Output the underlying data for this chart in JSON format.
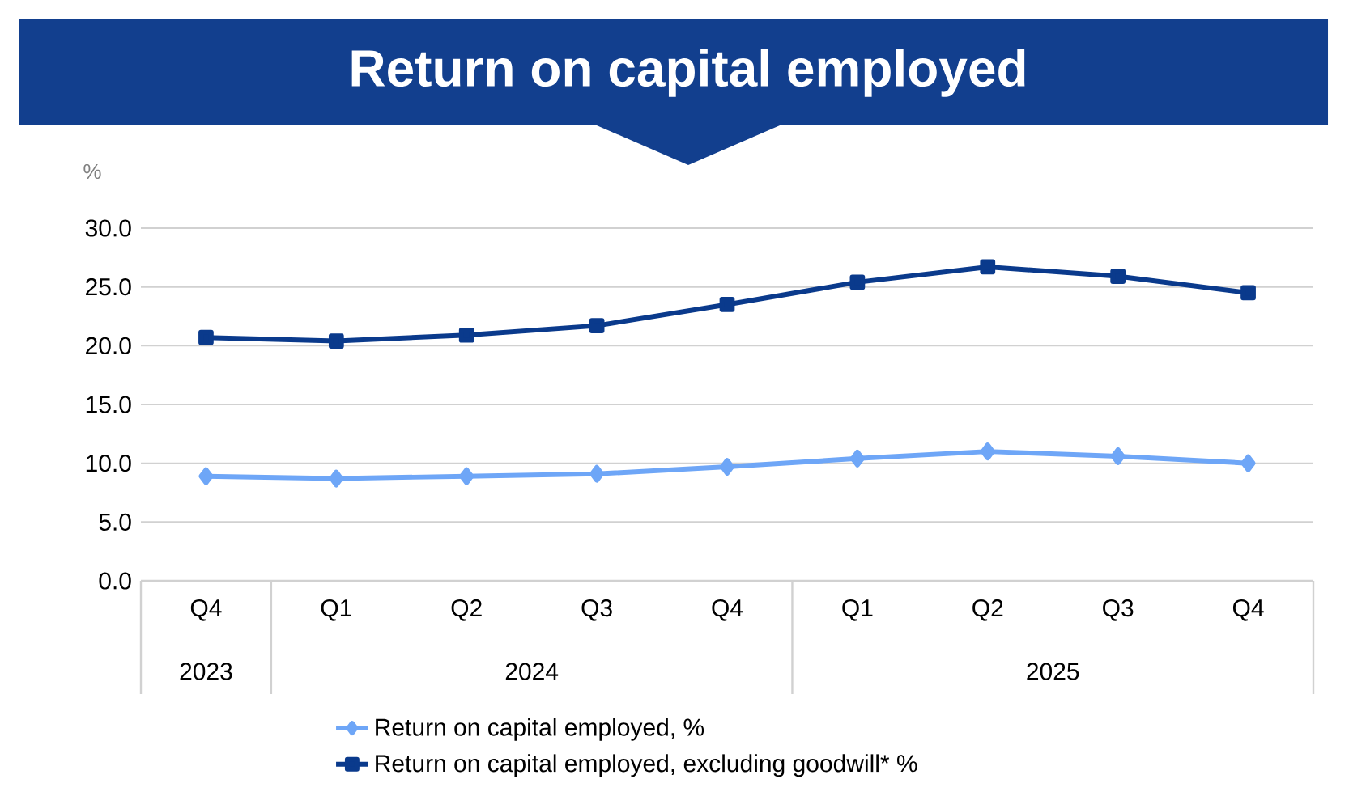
{
  "chart_data": {
    "type": "line",
    "title": "Return on capital employed",
    "ylabel": "%",
    "categories": [
      "Q4",
      "Q1",
      "Q2",
      "Q3",
      "Q4",
      "Q1",
      "Q2",
      "Q3",
      "Q4"
    ],
    "annotations": [
      "2023",
      "2024",
      "2025"
    ],
    "series": [
      {
        "name": "Return on capital employed, %",
        "color": "#6ea6f7",
        "marker": "diamond",
        "values": [
          8.9,
          8.7,
          8.9,
          9.1,
          9.7,
          10.4,
          11.0,
          10.6,
          10.0
        ]
      },
      {
        "name": "Return on capital employed, excluding goodwill* %",
        "color": "#0a3a8c",
        "marker": "square",
        "values": [
          20.7,
          20.4,
          20.9,
          21.7,
          23.5,
          25.4,
          26.7,
          25.9,
          24.5
        ]
      }
    ],
    "ylim": [
      0,
      30
    ],
    "yticks": [
      {
        "value": 0,
        "label": "0.0"
      },
      {
        "value": 5,
        "label": "5.0"
      },
      {
        "value": 10,
        "label": "10.0"
      },
      {
        "value": 15,
        "label": "15.0"
      },
      {
        "value": 20,
        "label": "20.0"
      },
      {
        "value": 25,
        "label": "25.0"
      },
      {
        "value": 30,
        "label": "30.0"
      }
    ],
    "grid": "y",
    "legend": "bottom",
    "line_style": "solid"
  }
}
